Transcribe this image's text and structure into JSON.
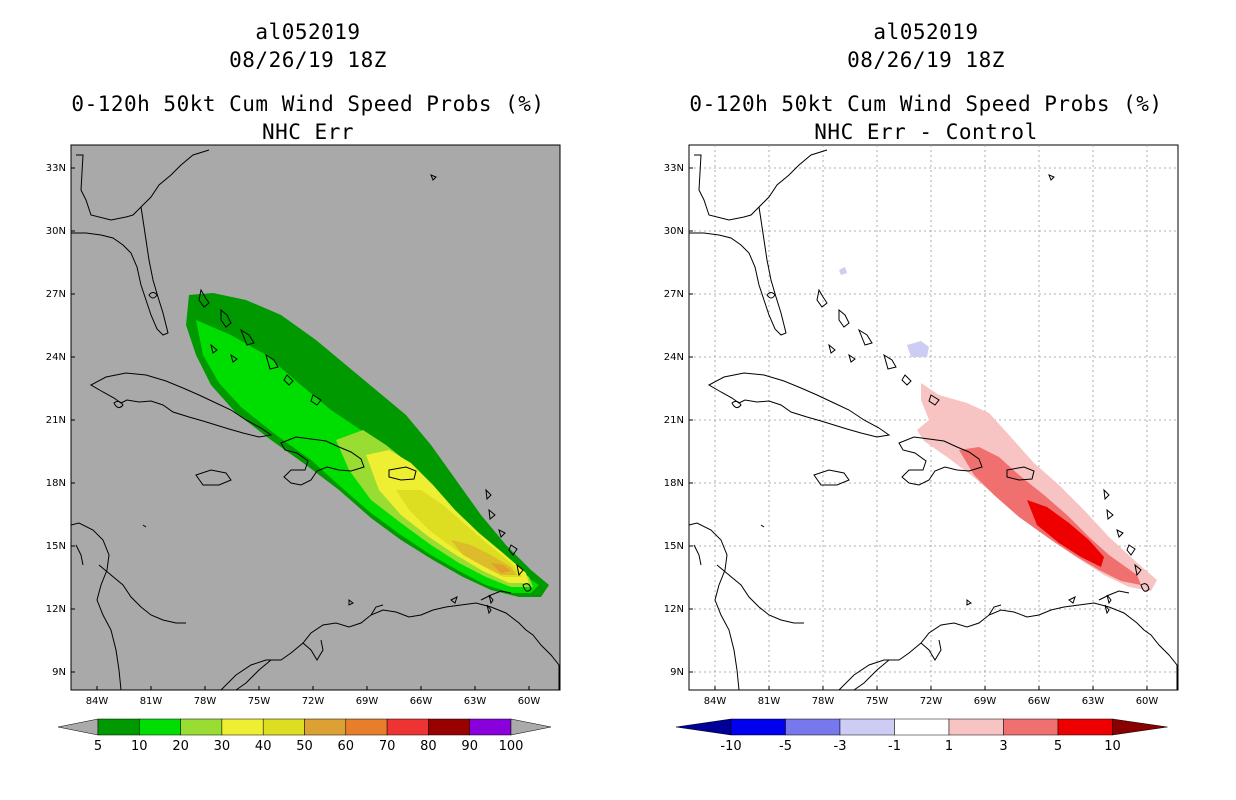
{
  "left_panel": {
    "title1": "al052019",
    "title2": "08/26/19 18Z",
    "title3": "0-120h 50kt Cum Wind Speed Probs (%)",
    "title4": "NHC Err"
  },
  "right_panel": {
    "title1": "al052019",
    "title2": "08/26/19 18Z",
    "title3": "0-120h 50kt Cum Wind Speed Probs (%)",
    "title4": "NHC Err - Control"
  },
  "lat_labels": [
    "33N",
    "30N",
    "27N",
    "24N",
    "21N",
    "18N",
    "15N",
    "12N",
    "9N"
  ],
  "lon_labels": [
    "84W",
    "81W",
    "78W",
    "75W",
    "72W",
    "69W",
    "66W",
    "63W",
    "60W"
  ],
  "left_colorbar": {
    "labels": [
      "5",
      "10",
      "20",
      "30",
      "40",
      "50",
      "60",
      "70",
      "80",
      "90",
      "100"
    ],
    "colors": [
      "#009900",
      "#00dd00",
      "#99dd33",
      "#eeee33",
      "#dddd22",
      "#dda033",
      "#e87d2a",
      "#ee3333",
      "#990000",
      "#8a00dd"
    ],
    "end_color": "#aaaaaa"
  },
  "right_colorbar": {
    "labels": [
      "-10",
      "-5",
      "-3",
      "-1",
      "1",
      "3",
      "5",
      "10"
    ],
    "colors": [
      "#0000ee",
      "#7777ee",
      "#ccccf5",
      "#ffffff",
      "#f7c3c3",
      "#f07070",
      "#ee0000"
    ],
    "low_end_color": "#000099",
    "high_end_color": "#880000"
  }
}
